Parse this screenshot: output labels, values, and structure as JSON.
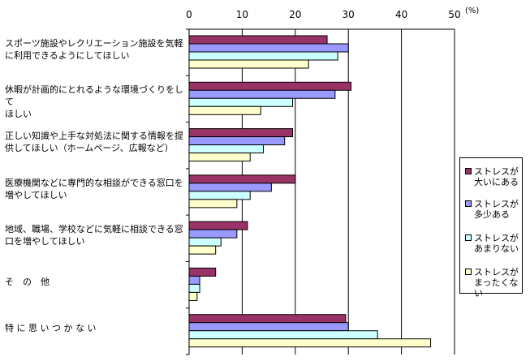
{
  "chart_data": {
    "type": "bar",
    "orientation": "horizontal",
    "unit": "(%)",
    "xlim": [
      0,
      50
    ],
    "xticks": [
      0,
      10,
      20,
      30,
      40,
      50
    ],
    "grid": true,
    "legend_placement": "right",
    "categories": [
      "スポーツ施設やレクリエーション施設を気軽\nに利用できるようにしてほしい",
      "休暇が計画的にとれるような環境づくりをして\nほしい",
      "正しい知識や上手な対処法に関する情報を提\n供してほしい（ホームページ、広報など）",
      "医療機関などに専門的な相談ができる窓口を\n増やしてほしい",
      "地域、職場、学校などに気軽に相談できる窓\n口を増やしてほしい",
      "そ　の　他",
      "特 に 思 い つ か な い"
    ],
    "series": [
      {
        "name": "ストレスが\n大いにある",
        "color": "#993366",
        "values": [
          26.0,
          30.5,
          19.5,
          20.0,
          11.0,
          5.0,
          29.5
        ]
      },
      {
        "name": "ストレスが\n多少ある",
        "color": "#9999ff",
        "values": [
          30.0,
          27.5,
          18.0,
          15.5,
          9.0,
          2.0,
          30.0
        ]
      },
      {
        "name": "ストレスが\nあまりない",
        "color": "#ccffff",
        "values": [
          28.0,
          19.5,
          14.0,
          11.5,
          6.0,
          2.0,
          35.5
        ]
      },
      {
        "name": "ストレスが\nまったくない",
        "color": "#ffffcc",
        "values": [
          22.5,
          13.5,
          11.5,
          9.0,
          5.0,
          1.5,
          45.5
        ]
      }
    ]
  }
}
